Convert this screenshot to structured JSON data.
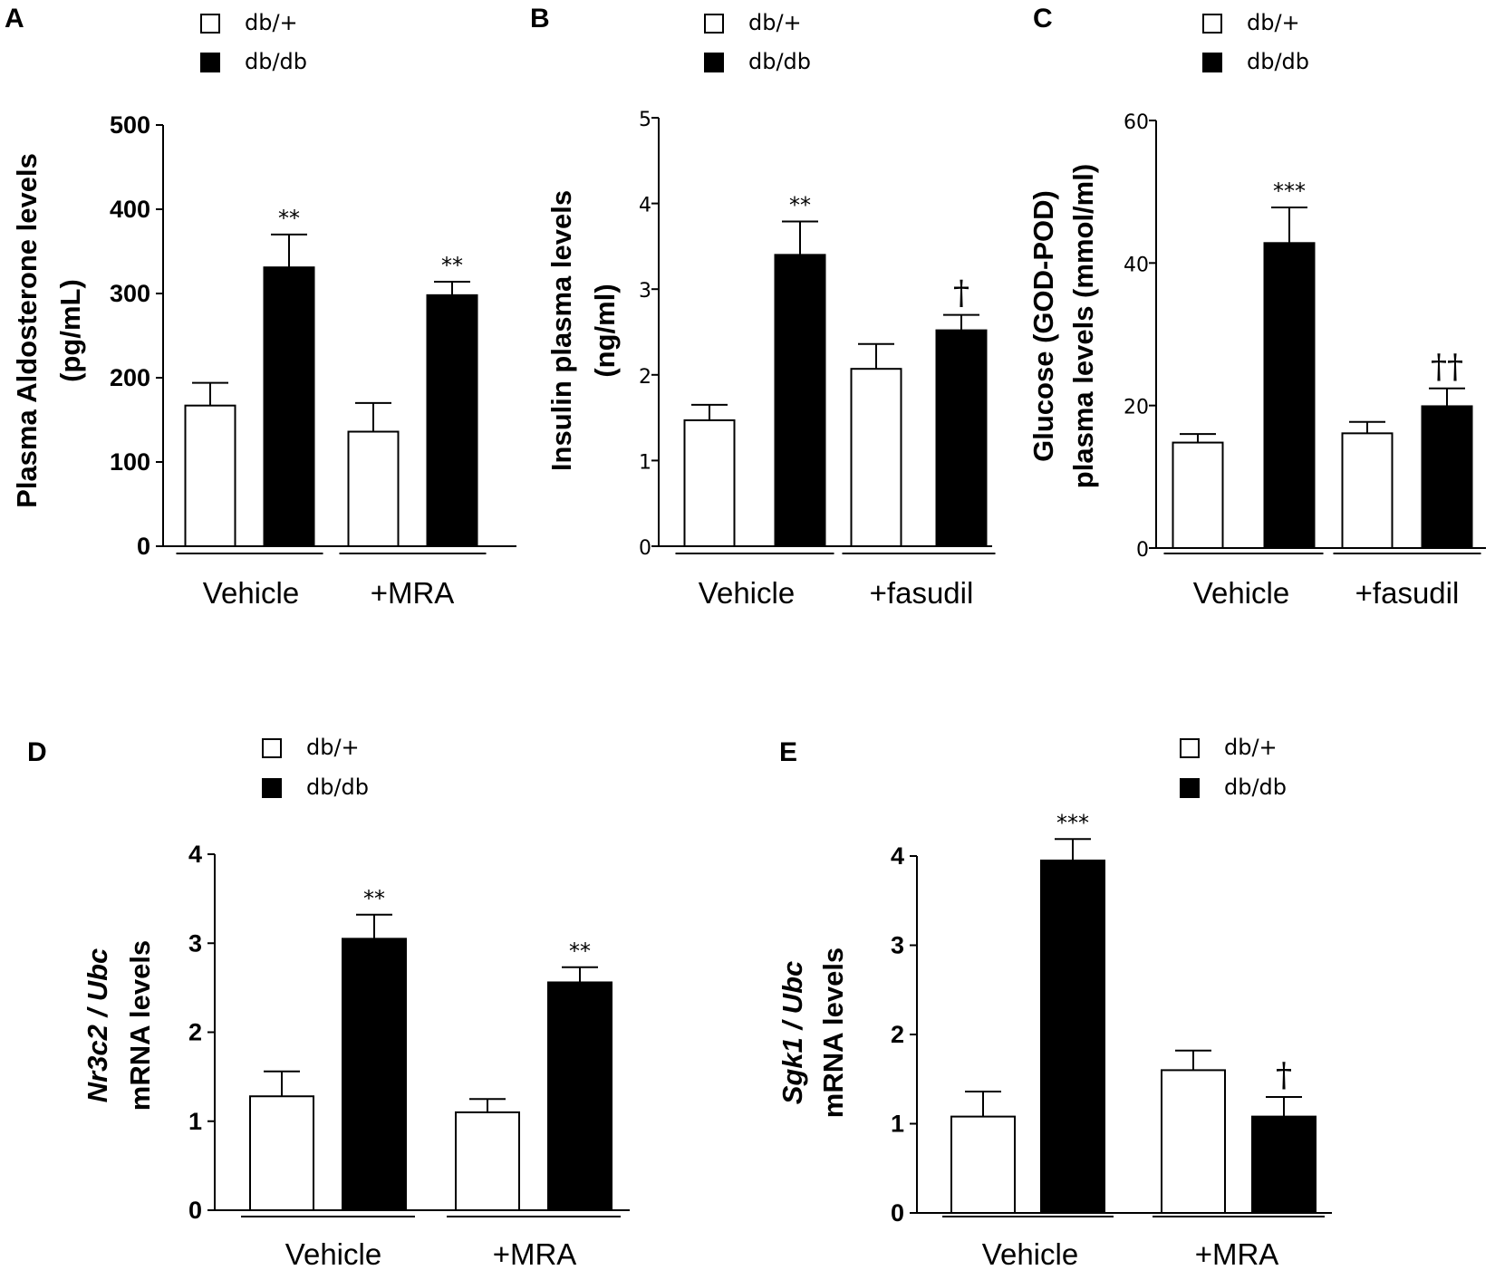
{
  "chart_data": [
    {
      "panel": "A",
      "type": "bar",
      "legend": [
        "db/+",
        "db/db"
      ],
      "groups": [
        "Vehicle",
        "+MRA"
      ],
      "series": [
        {
          "name": "db/+",
          "values": [
            167,
            136
          ],
          "errors": [
            27,
            34
          ]
        },
        {
          "name": "db/db",
          "values": [
            331,
            298
          ],
          "errors": [
            39,
            16
          ]
        }
      ],
      "annotations": [
        [
          "",
          "**"
        ],
        [
          "",
          "**"
        ]
      ],
      "ylabel_lines": [
        "Plasma Aldosterone levels",
        "(pg/mL)"
      ],
      "ylim": [
        0,
        500
      ],
      "yticks": [
        0,
        100,
        200,
        300,
        400,
        500
      ],
      "ytick_labels": [
        "0",
        "100",
        "200",
        "300",
        "400",
        "500"
      ]
    },
    {
      "panel": "B",
      "type": "bar",
      "legend": [
        "db/+",
        "db/db"
      ],
      "groups": [
        "Vehicle",
        "+fasudil"
      ],
      "series": [
        {
          "name": "db/+",
          "values": [
            1.47,
            2.07
          ],
          "errors": [
            0.18,
            0.29
          ]
        },
        {
          "name": "db/db",
          "values": [
            3.4,
            2.52
          ],
          "errors": [
            0.39,
            0.18
          ]
        }
      ],
      "annotations": [
        [
          "",
          "**"
        ],
        [
          "",
          "†"
        ]
      ],
      "ylabel_lines": [
        "Insulin plasma levels",
        "(ng/ml)"
      ],
      "ylim": [
        0,
        5
      ],
      "yticks": [
        0,
        1,
        2,
        3,
        4,
        5
      ],
      "ytick_labels": [
        "0",
        "1",
        "2",
        "3",
        "4",
        "5"
      ]
    },
    {
      "panel": "C",
      "type": "bar",
      "legend": [
        "db/+",
        "db/db"
      ],
      "groups": [
        "Vehicle",
        "+fasudil"
      ],
      "series": [
        {
          "name": "db/+",
          "values": [
            14.8,
            16.1
          ],
          "errors": [
            1.2,
            1.6
          ]
        },
        {
          "name": "db/db",
          "values": [
            42.8,
            19.9
          ],
          "errors": [
            5.0,
            2.5
          ]
        }
      ],
      "annotations": [
        [
          "",
          "***"
        ],
        [
          "",
          "††"
        ]
      ],
      "ylabel_lines": [
        "Glucose (GOD-POD)",
        "plasma levels (mmol/ml)"
      ],
      "ylim": [
        0,
        60
      ],
      "yticks": [
        0,
        20,
        40,
        60
      ],
      "ytick_labels": [
        "0",
        "20",
        "40",
        "60"
      ]
    },
    {
      "panel": "D",
      "type": "bar",
      "legend": [
        "db/+",
        "db/db"
      ],
      "groups": [
        "Vehicle",
        "+MRA"
      ],
      "series": [
        {
          "name": "db/+",
          "values": [
            1.28,
            1.1
          ],
          "errors": [
            0.28,
            0.15
          ]
        },
        {
          "name": "db/db",
          "values": [
            3.05,
            2.56
          ],
          "errors": [
            0.27,
            0.17
          ]
        }
      ],
      "annotations": [
        [
          "",
          "**"
        ],
        [
          "",
          "**"
        ]
      ],
      "ylabel_lines": [
        "Nr3c2 / Ubc",
        "mRNA levels"
      ],
      "ylim": [
        0,
        4
      ],
      "yticks": [
        0,
        1,
        2,
        3,
        4
      ],
      "ytick_labels": [
        "0",
        "1",
        "2",
        "3",
        "4"
      ]
    },
    {
      "panel": "E",
      "type": "bar",
      "legend": [
        "db/+",
        "db/db"
      ],
      "groups": [
        "Vehicle",
        "+MRA"
      ],
      "series": [
        {
          "name": "db/+",
          "values": [
            1.08,
            1.6
          ],
          "errors": [
            0.28,
            0.22
          ]
        },
        {
          "name": "db/db",
          "values": [
            3.95,
            1.08
          ],
          "errors": [
            0.24,
            0.22
          ]
        }
      ],
      "annotations": [
        [
          "",
          "***"
        ],
        [
          "",
          "†"
        ]
      ],
      "ylabel_lines": [
        "Sgk1 / Ubc",
        "mRNA levels"
      ],
      "ylim": [
        0,
        4
      ],
      "yticks": [
        0,
        1,
        2,
        3,
        4
      ],
      "ytick_labels": [
        "0",
        "1",
        "2",
        "3",
        "4"
      ]
    }
  ]
}
